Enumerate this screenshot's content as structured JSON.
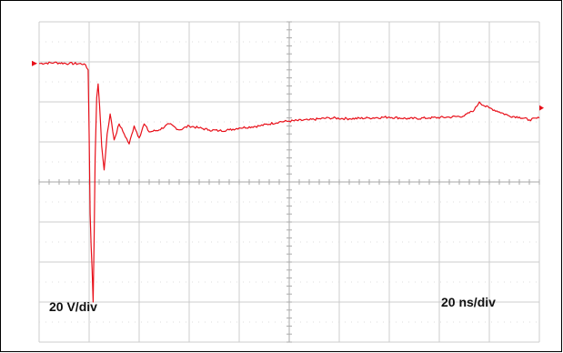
{
  "chart_data": {
    "type": "line",
    "title": "",
    "xlabel": "",
    "ylabel": "",
    "grid": true,
    "divisions": {
      "x": 10,
      "y": 8
    },
    "xlim": [
      0,
      10
    ],
    "ylim": [
      -4,
      4
    ],
    "x_units": "div",
    "y_units": "div",
    "vertical_scale_label": "20 V/div",
    "horizontal_scale_label": "20 ns/div",
    "colors": {
      "trace": "#e8101a",
      "grid": "#cccccc",
      "frame": "#000000",
      "background": "#ffffff"
    },
    "series": [
      {
        "points": [
          [
            0.0,
            2.96
          ],
          [
            0.3,
            2.98
          ],
          [
            0.6,
            2.96
          ],
          [
            0.9,
            2.95
          ],
          [
            0.98,
            2.8
          ],
          [
            1.0,
            1.2
          ],
          [
            1.02,
            -0.8
          ],
          [
            1.04,
            -1.6
          ],
          [
            1.06,
            -2.2
          ],
          [
            1.08,
            -3.0
          ],
          [
            1.1,
            -1.4
          ],
          [
            1.12,
            0.6
          ],
          [
            1.15,
            2.1
          ],
          [
            1.18,
            2.45
          ],
          [
            1.21,
            1.9
          ],
          [
            1.25,
            0.9
          ],
          [
            1.3,
            0.3
          ],
          [
            1.36,
            1.2
          ],
          [
            1.42,
            1.7
          ],
          [
            1.5,
            1.05
          ],
          [
            1.6,
            1.45
          ],
          [
            1.7,
            1.2
          ],
          [
            1.8,
            0.95
          ],
          [
            1.9,
            1.4
          ],
          [
            2.0,
            1.1
          ],
          [
            2.1,
            1.45
          ],
          [
            2.2,
            1.25
          ],
          [
            2.4,
            1.3
          ],
          [
            2.6,
            1.45
          ],
          [
            2.8,
            1.3
          ],
          [
            3.0,
            1.4
          ],
          [
            3.2,
            1.35
          ],
          [
            3.4,
            1.3
          ],
          [
            3.6,
            1.28
          ],
          [
            3.8,
            1.3
          ],
          [
            4.0,
            1.35
          ],
          [
            4.4,
            1.4
          ],
          [
            4.8,
            1.5
          ],
          [
            5.0,
            1.52
          ],
          [
            5.4,
            1.55
          ],
          [
            5.8,
            1.6
          ],
          [
            6.2,
            1.58
          ],
          [
            6.6,
            1.6
          ],
          [
            7.0,
            1.62
          ],
          [
            7.4,
            1.58
          ],
          [
            7.8,
            1.6
          ],
          [
            8.2,
            1.62
          ],
          [
            8.5,
            1.65
          ],
          [
            8.7,
            1.8
          ],
          [
            8.8,
            2.0
          ],
          [
            8.9,
            1.9
          ],
          [
            9.0,
            1.85
          ],
          [
            9.2,
            1.75
          ],
          [
            9.4,
            1.65
          ],
          [
            9.6,
            1.62
          ],
          [
            9.8,
            1.55
          ],
          [
            10.0,
            1.6
          ]
        ]
      }
    ]
  }
}
